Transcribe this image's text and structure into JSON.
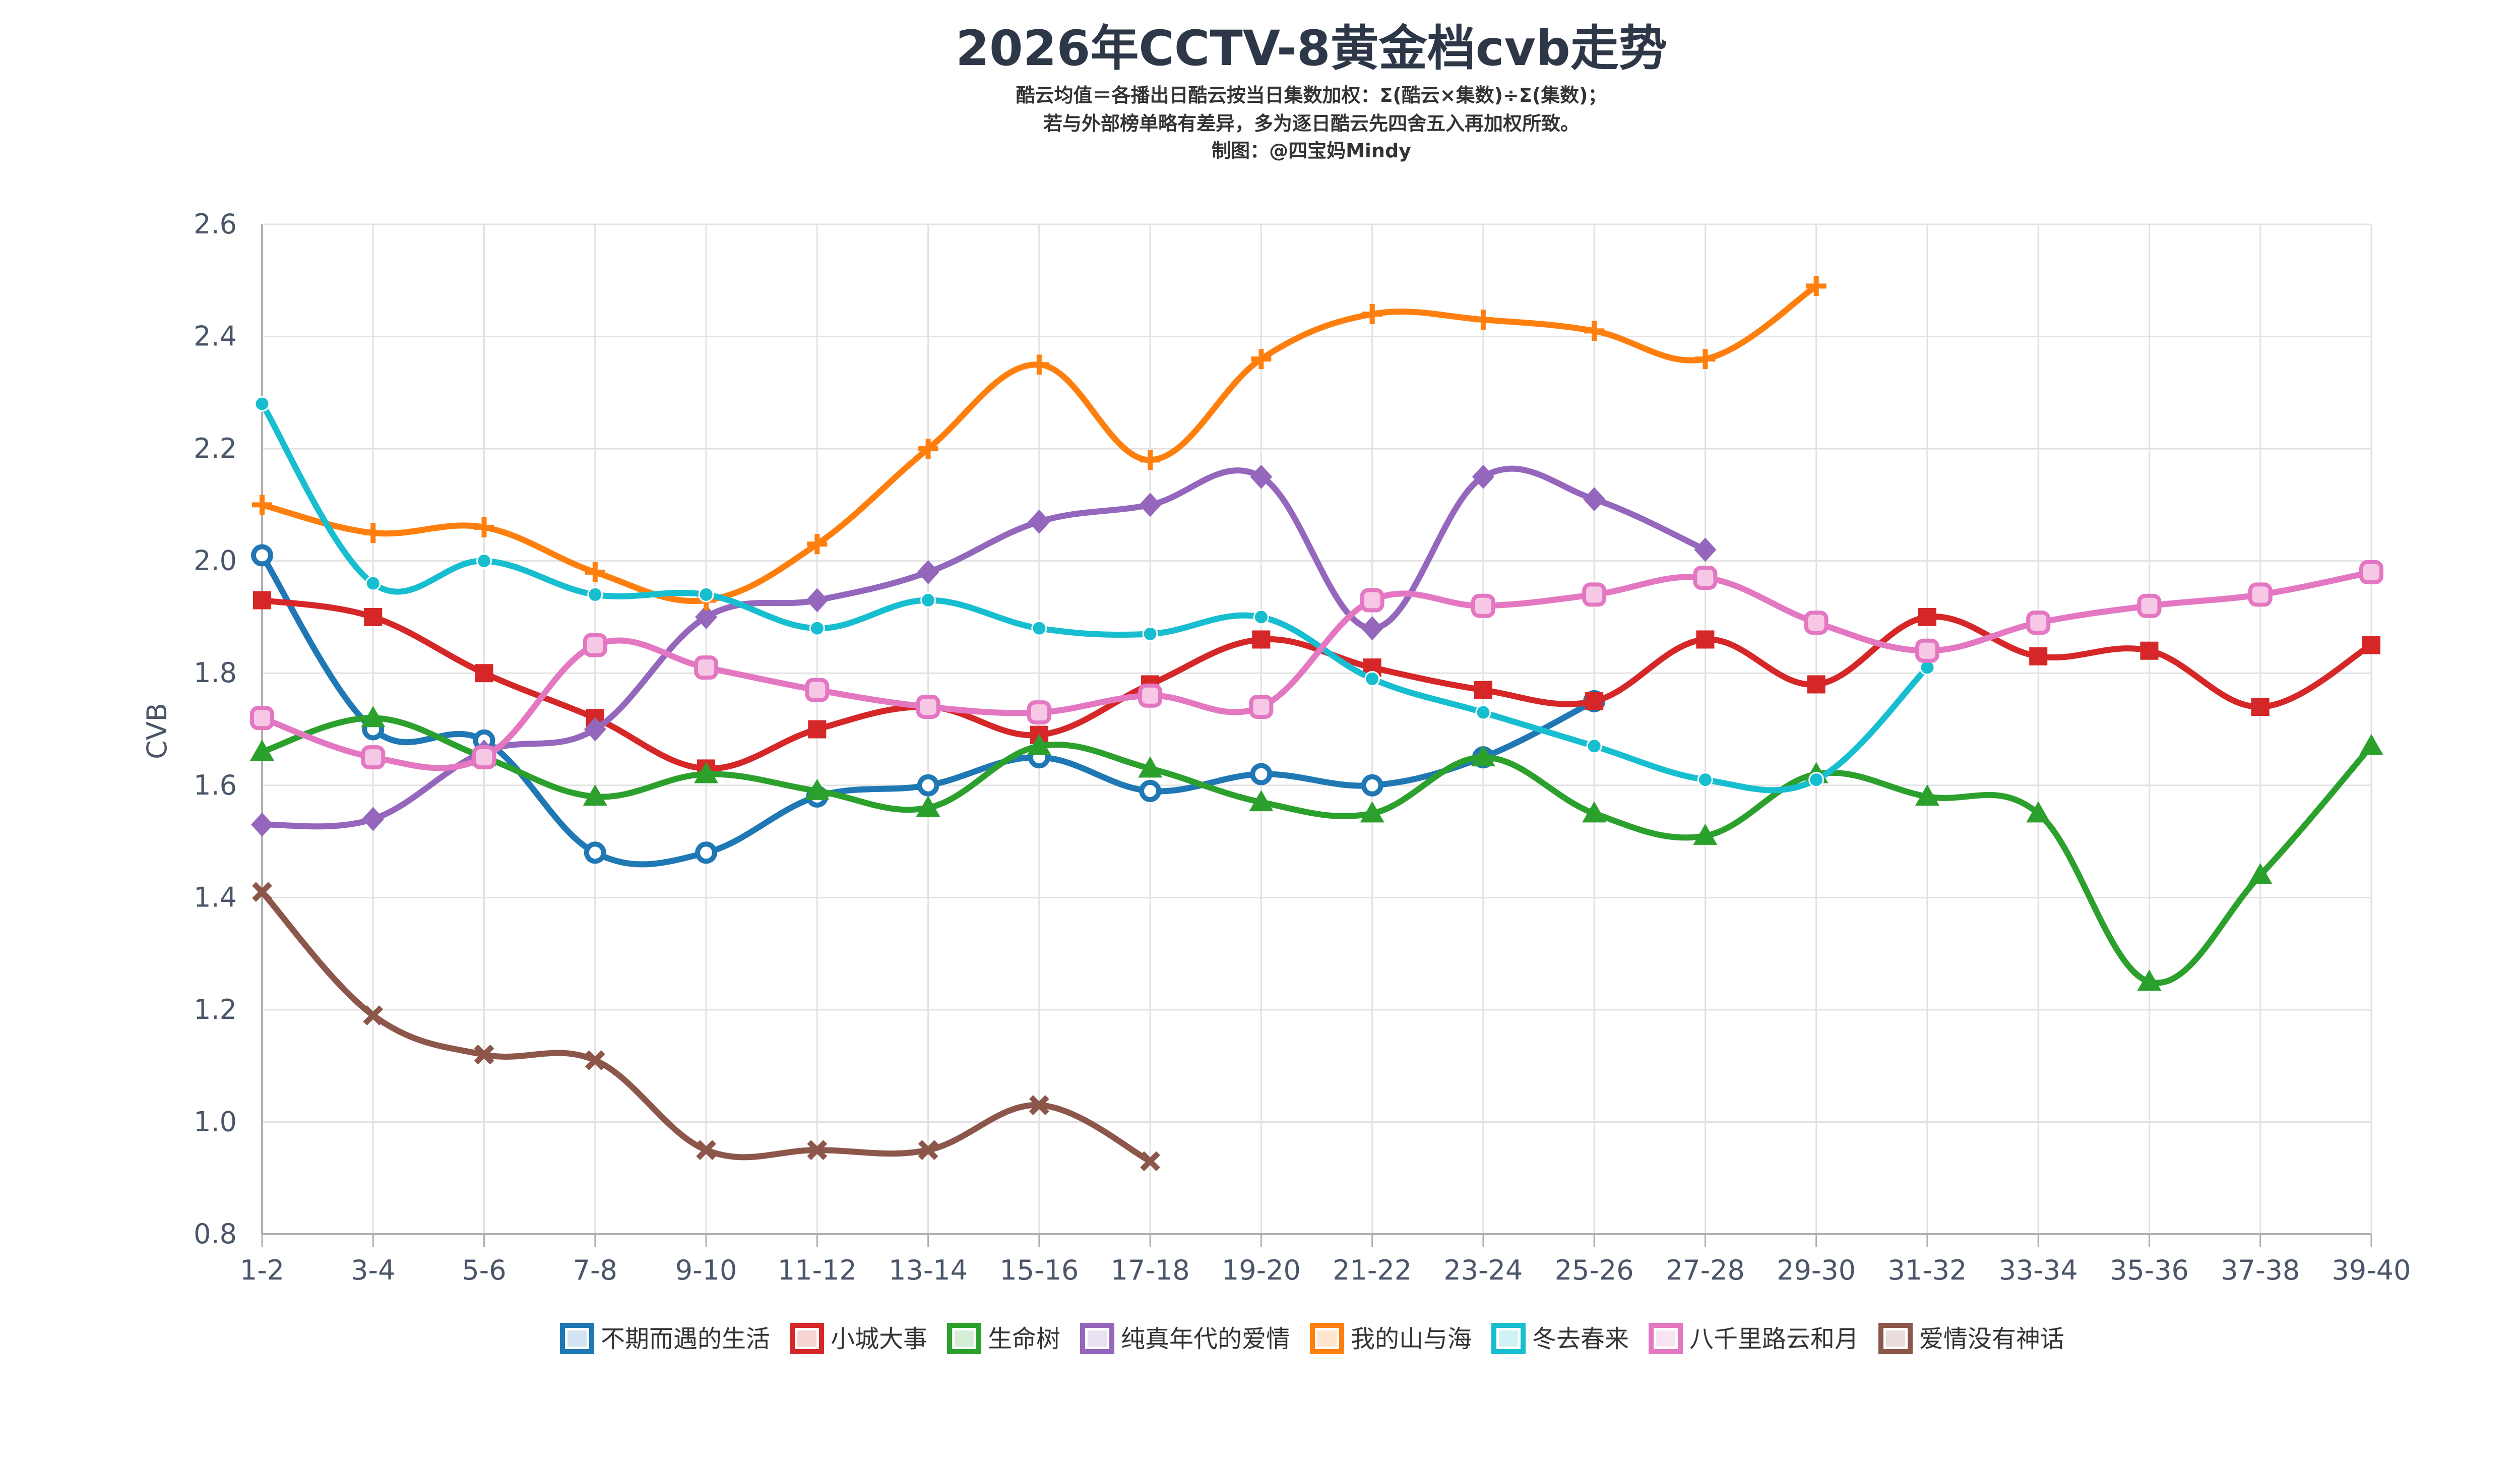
{
  "chart_data": {
    "type": "line",
    "title": "2026年CCTV-8黄金档cvb走势",
    "subtitle_lines": [
      "酷云均值＝各播出日酷云按当日集数加权：Σ(酷云×集数)÷Σ(集数)；",
      "若与外部榜单略有差异，多为逐日酷云先四舍五入再加权所致。",
      "制图：@四宝妈Mindy"
    ],
    "xlabel": "",
    "ylabel": "CVB",
    "ylim": [
      0.8,
      2.6
    ],
    "yticks": [
      "0.8",
      "1.0",
      "1.2",
      "1.4",
      "1.6",
      "1.8",
      "2.0",
      "2.2",
      "2.4",
      "2.6"
    ],
    "grid": true,
    "legend_position": "bottom",
    "categories": [
      "1-2",
      "3-4",
      "5-6",
      "7-8",
      "9-10",
      "11-12",
      "13-14",
      "15-16",
      "17-18",
      "19-20",
      "21-22",
      "23-24",
      "25-26",
      "27-28",
      "29-30",
      "31-32",
      "33-34",
      "35-36",
      "37-38",
      "39-40"
    ],
    "series": [
      {
        "name": "不期而遇的生活",
        "color": "#1f77b4",
        "marker": "circle",
        "values": [
          2.01,
          1.7,
          1.68,
          1.48,
          1.48,
          1.58,
          1.6,
          1.65,
          1.59,
          1.62,
          1.6,
          1.65,
          1.75,
          null,
          null,
          null,
          null,
          null,
          null,
          null
        ]
      },
      {
        "name": "小城大事",
        "color": "#d62728",
        "marker": "square",
        "values": [
          1.93,
          1.9,
          1.8,
          1.72,
          1.63,
          1.7,
          1.74,
          1.69,
          1.78,
          1.86,
          1.81,
          1.77,
          1.75,
          1.86,
          1.78,
          1.9,
          1.83,
          1.84,
          1.74,
          1.85
        ]
      },
      {
        "name": "生命树",
        "color": "#2ca02c",
        "marker": "triangle",
        "values": [
          1.66,
          1.72,
          1.65,
          1.58,
          1.62,
          1.59,
          1.56,
          1.67,
          1.63,
          1.57,
          1.55,
          1.65,
          1.55,
          1.51,
          1.62,
          1.58,
          1.55,
          1.25,
          1.44,
          1.67
        ]
      },
      {
        "name": "纯真年代的爱情",
        "color": "#9467bd",
        "marker": "diamond",
        "values": [
          1.53,
          1.54,
          1.66,
          1.7,
          1.9,
          1.93,
          1.98,
          2.07,
          2.1,
          2.15,
          1.88,
          2.15,
          2.11,
          2.02,
          null,
          null,
          null,
          null,
          null,
          null
        ]
      },
      {
        "name": "我的山与海",
        "color": "#ff7f0e",
        "marker": "plus",
        "values": [
          2.1,
          2.05,
          2.06,
          1.98,
          1.93,
          2.03,
          2.2,
          2.35,
          2.18,
          2.36,
          2.44,
          2.43,
          2.41,
          2.36,
          2.49,
          null,
          null,
          null,
          null,
          null
        ]
      },
      {
        "name": "冬去春来",
        "color": "#17becf",
        "marker": "circle-small",
        "values": [
          2.28,
          1.96,
          2.0,
          1.94,
          1.94,
          1.88,
          1.93,
          1.88,
          1.87,
          1.9,
          1.79,
          1.73,
          1.67,
          1.61,
          1.61,
          1.81,
          null,
          null,
          null,
          null
        ]
      },
      {
        "name": "八千里路云和月",
        "color": "#e377c2",
        "marker": "rounded-square",
        "values": [
          1.72,
          1.65,
          1.65,
          1.85,
          1.81,
          1.77,
          1.74,
          1.73,
          1.76,
          1.74,
          1.93,
          1.92,
          1.94,
          1.97,
          1.89,
          1.84,
          1.89,
          1.92,
          1.94,
          1.98
        ]
      },
      {
        "name": "爱情没有神话",
        "color": "#8c564b",
        "marker": "cross",
        "values": [
          1.41,
          1.19,
          1.12,
          1.11,
          0.95,
          0.95,
          0.95,
          1.03,
          0.93,
          null,
          null,
          null,
          null,
          null,
          null,
          null,
          null,
          null,
          null,
          null
        ]
      }
    ]
  }
}
